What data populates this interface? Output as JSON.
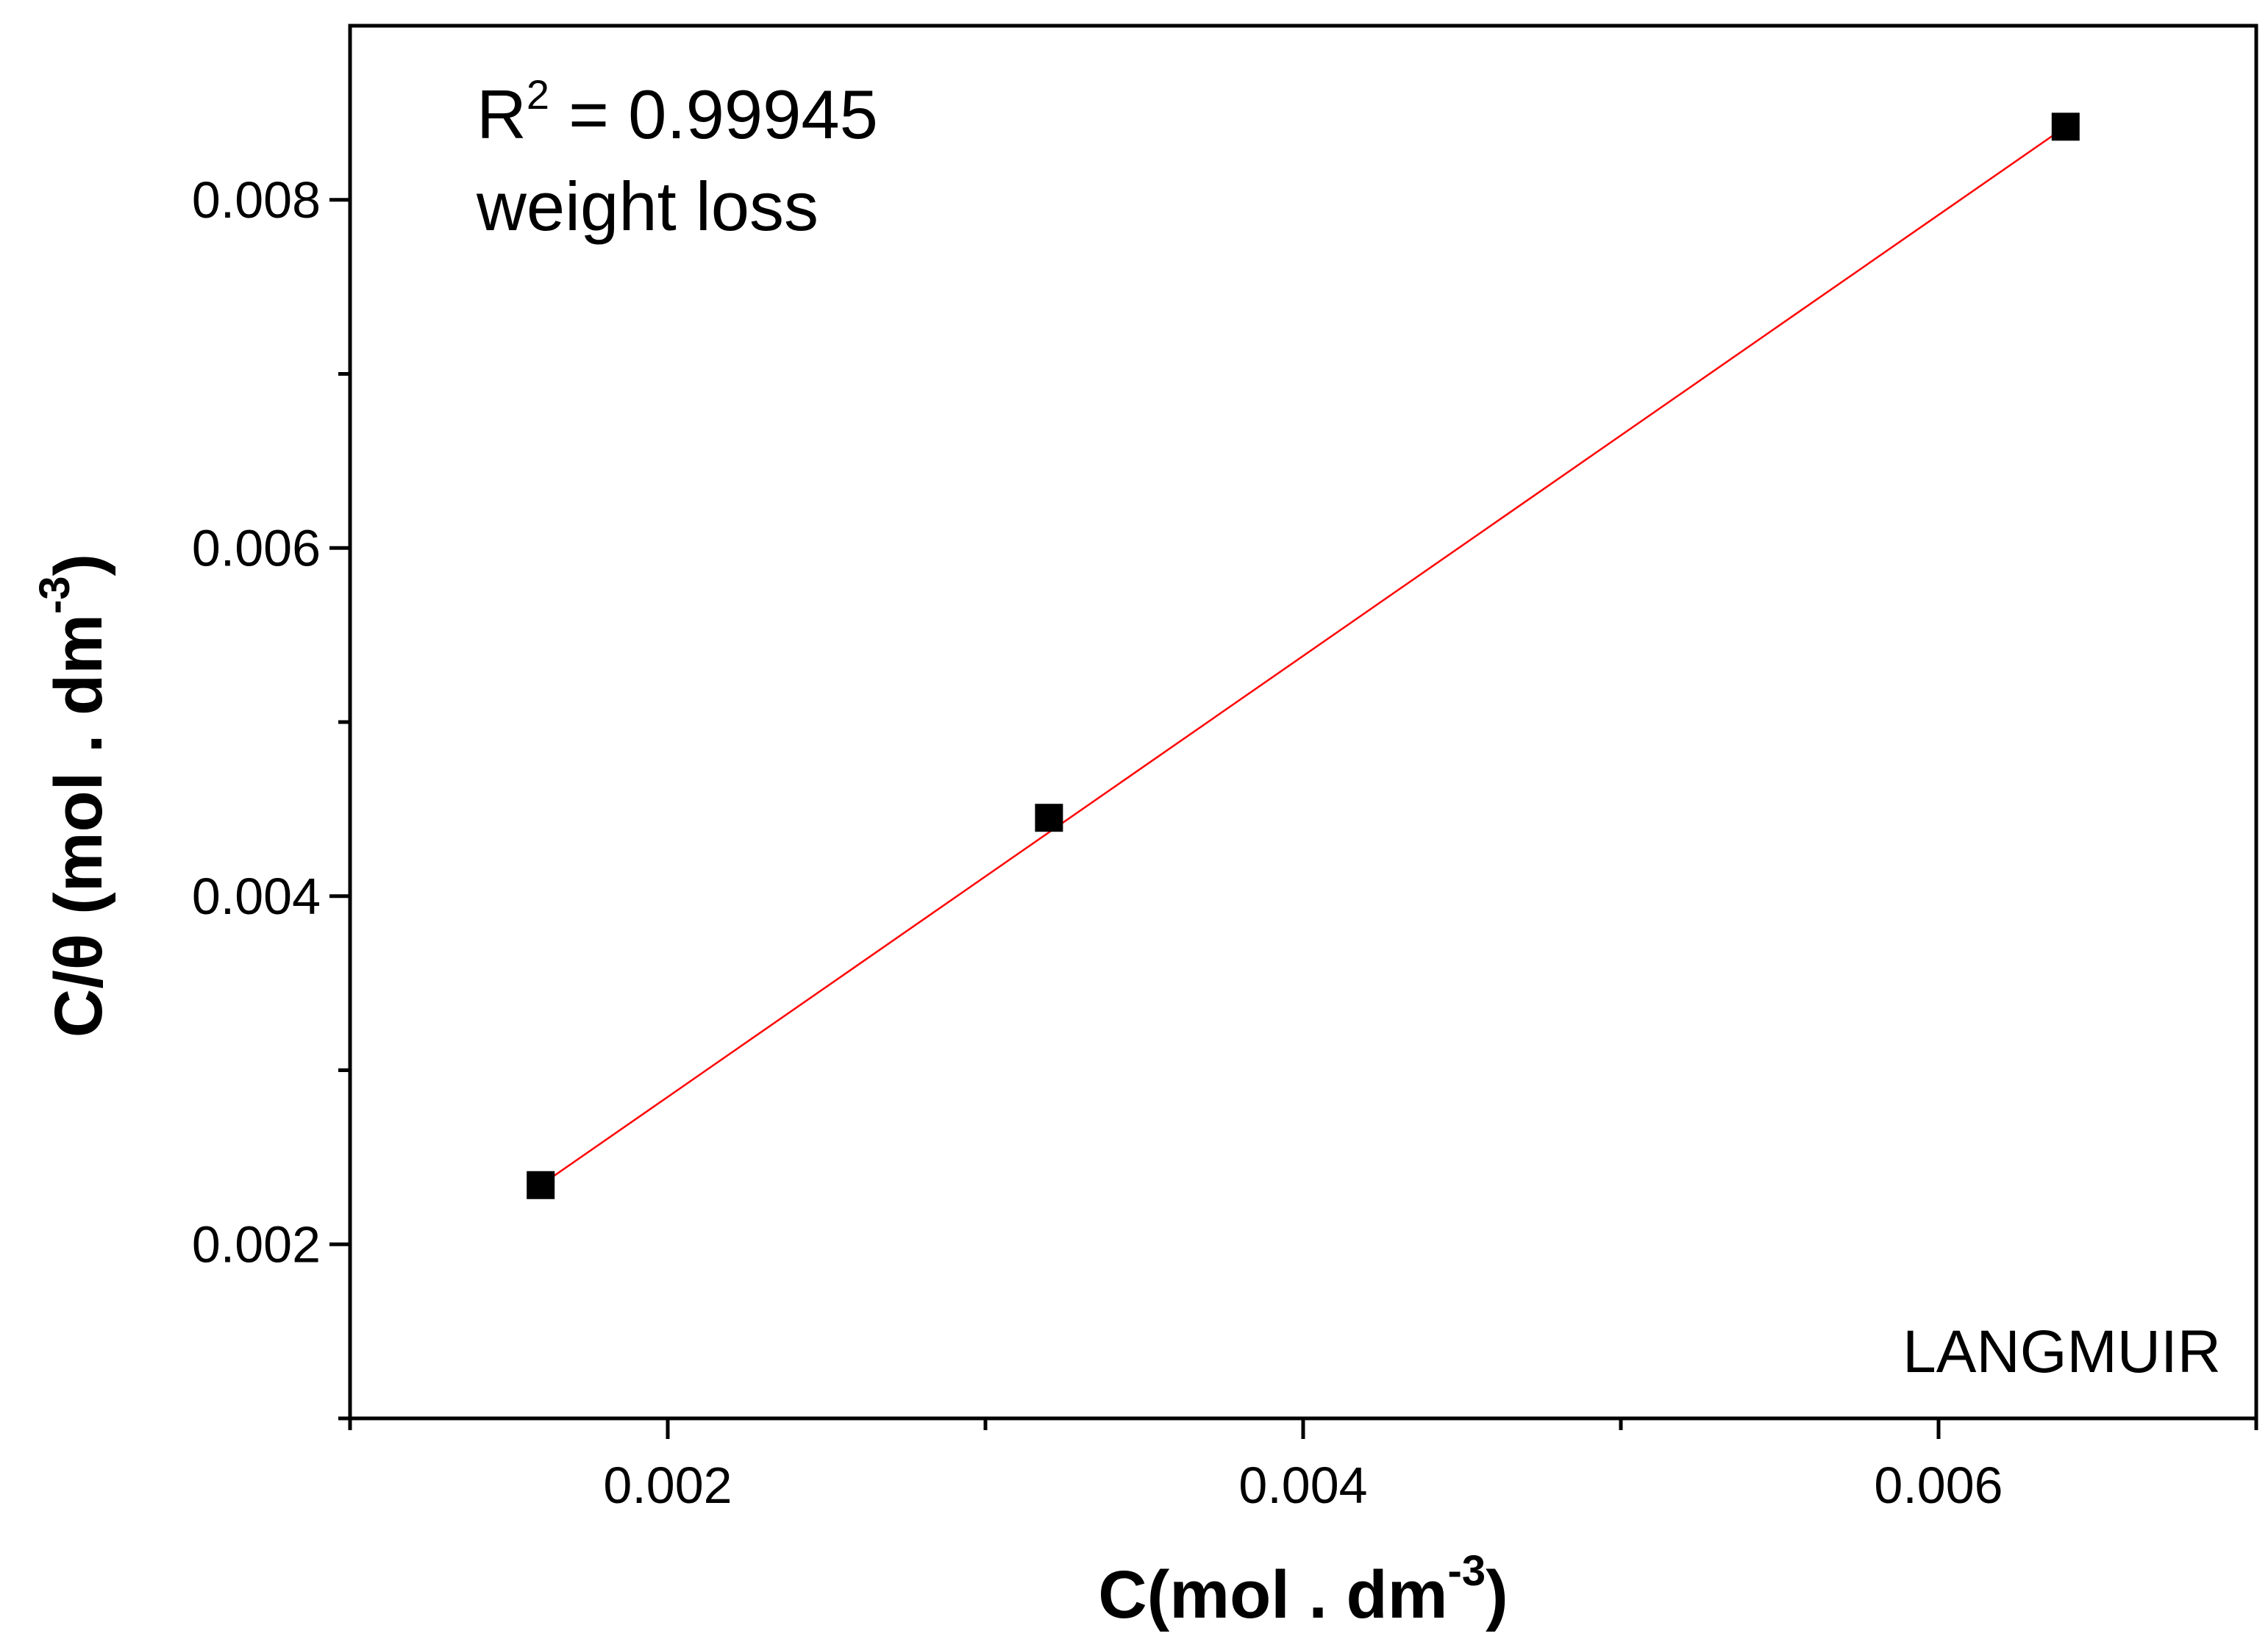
{
  "chart_data": {
    "type": "scatter",
    "title": "",
    "xlabel": {
      "main": "C(mol . dm",
      "sup": "-3",
      "end": ")"
    },
    "ylabel": {
      "main": "C/θ (mol . dm",
      "sup": "-3",
      "end": ")"
    },
    "xlim": [
      0.001,
      0.007
    ],
    "ylim": [
      0.001,
      0.009
    ],
    "x_ticks": [
      0.002,
      0.004,
      0.006
    ],
    "x_tick_labels": [
      "0.002",
      "0.004",
      "0.006"
    ],
    "y_ticks": [
      0.002,
      0.004,
      0.006,
      0.008
    ],
    "y_tick_labels": [
      "0.002",
      "0.004",
      "0.006",
      "0.008"
    ],
    "x_minor_ticks": [
      0.001,
      0.003,
      0.005,
      0.007
    ],
    "y_minor_ticks": [
      0.001,
      0.003,
      0.005,
      0.007
    ],
    "grid": false,
    "series": [
      {
        "marker": "square",
        "color": "#000000",
        "x": [
          0.0016,
          0.0032,
          0.0064
        ],
        "y": [
          0.00234,
          0.00445,
          0.00842
        ]
      }
    ],
    "fit_line": {
      "color": "#ff0000",
      "x": [
        0.0016,
        0.0064
      ],
      "y": [
        0.00234,
        0.00842
      ]
    },
    "annotations": {
      "r2_label": "R",
      "r2_sup": "2",
      "r2_value": " = 0.99945",
      "method": "weight loss",
      "model": "LANGMUIR"
    }
  }
}
